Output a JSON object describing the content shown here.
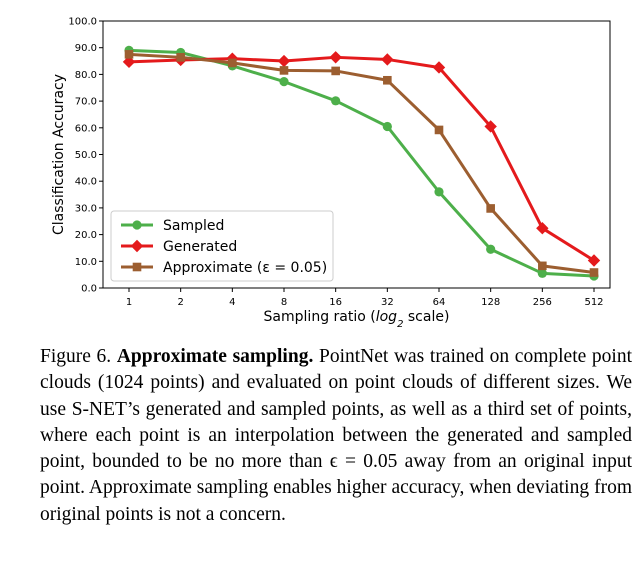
{
  "chart_data": {
    "type": "line",
    "xlabel_main": "Sampling ratio (",
    "xlabel_log": "log",
    "xlabel_sub": "2",
    "xlabel_tail": " scale)",
    "ylabel": "Classification Accuracy",
    "x_scale": "log2",
    "categories": [
      "1",
      "2",
      "4",
      "8",
      "16",
      "32",
      "64",
      "128",
      "256",
      "512"
    ],
    "y_ticks": [
      "0.0",
      "10.0",
      "20.0",
      "30.0",
      "40.0",
      "50.0",
      "60.0",
      "70.0",
      "80.0",
      "90.0",
      "100.0"
    ],
    "ylim": [
      0,
      100
    ],
    "grid": false,
    "legend_position": "lower-left",
    "series": [
      {
        "name": "Sampled",
        "color": "#4daf4a",
        "marker": "circle",
        "values": [
          89.0,
          88.2,
          83.2,
          77.3,
          70.1,
          60.5,
          36.0,
          14.5,
          5.5,
          4.5
        ]
      },
      {
        "name": "Generated",
        "color": "#e41a1c",
        "marker": "diamond",
        "values": [
          84.7,
          85.4,
          85.9,
          85.0,
          86.4,
          85.6,
          82.6,
          60.5,
          22.4,
          10.3
        ]
      },
      {
        "name": "Approximate (ε = 0.05)",
        "color": "#9c5e30",
        "marker": "square",
        "values": [
          87.5,
          86.4,
          84.3,
          81.5,
          81.3,
          77.8,
          59.2,
          29.8,
          8.3,
          5.8
        ]
      }
    ]
  },
  "caption": {
    "figure_label": "Figure 6.",
    "bold_title": "Approximate sampling.",
    "body": "PointNet was trained on complete point clouds (1024 points) and evaluated on point clouds of different sizes. We use S-NET’s generated and sampled points, as well as a third set of points, where each point is an interpolation between the generated and sampled point, bounded to be no more than ϵ = 0.05 away from an original input point. Approximate sampling enables higher accuracy, when deviating from original points is not a concern."
  }
}
